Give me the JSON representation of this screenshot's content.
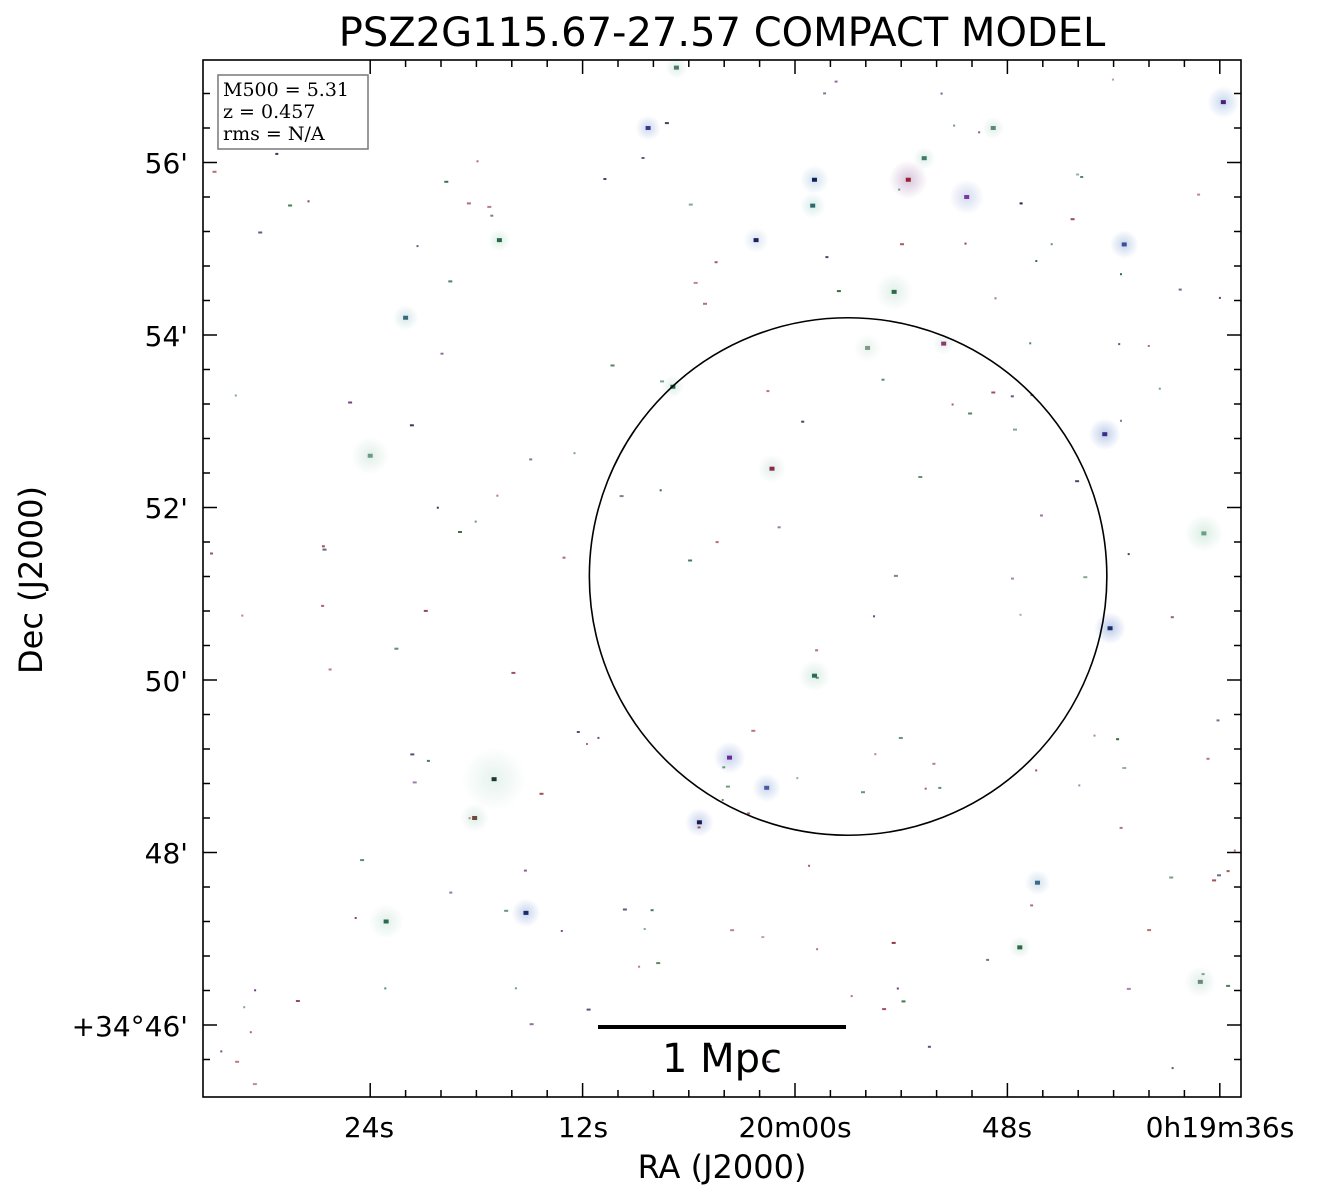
{
  "chart_data": {
    "type": "scatter",
    "title": "PSZ2G115.67-27.57 COMPACT MODEL",
    "xlabel": "RA (J2000)",
    "ylabel": "Dec (J2000)",
    "x_ticks": [
      "24s",
      "12s",
      "20m00s",
      "48s",
      "0h19m36s"
    ],
    "y_ticks": [
      "56'",
      "54'",
      "52'",
      "50'",
      "48'",
      "+34°46'"
    ],
    "info_box": {
      "lines": [
        "M500 = 5.31",
        "z = 0.457",
        "rms = N/A"
      ]
    },
    "scale_bar": {
      "label": "1 Mpc"
    },
    "region": {
      "shape": "circle",
      "ra_s": 63.0,
      "dec_arcmin": 51.2,
      "radius_arcmin": 3.0
    },
    "sources": [
      {
        "ra_s": 84.2,
        "dec_arcmin": 56.7,
        "size": 10,
        "color": "#4a1f7a",
        "halo": "#c8d8ee"
      },
      {
        "ra_s": 78.6,
        "dec_arcmin": 55.05,
        "size": 9,
        "color": "#3c4f9a",
        "halo": "#c8d6ec"
      },
      {
        "ra_s": 77.5,
        "dec_arcmin": 52.85,
        "size": 10,
        "color": "#3a2e86",
        "halo": "#bfcdea"
      },
      {
        "ra_s": 77.8,
        "dec_arcmin": 50.6,
        "size": 10,
        "color": "#1b2e6e",
        "halo": "#bccbe8"
      },
      {
        "ra_s": 83.1,
        "dec_arcmin": 51.7,
        "size": 12,
        "color": "#6aa080",
        "halo": "#dbeee4"
      },
      {
        "ra_s": 69.7,
        "dec_arcmin": 55.6,
        "size": 11,
        "color": "#7a3aa0",
        "halo": "#d4dcef"
      },
      {
        "ra_s": 71.2,
        "dec_arcmin": 56.4,
        "size": 7,
        "color": "#5a8a7a",
        "halo": "#e0eee8"
      },
      {
        "ra_s": 68.4,
        "dec_arcmin": 53.9,
        "size": 7,
        "color": "#8a3a6a",
        "halo": "#e6eeea"
      },
      {
        "ra_s": 66.4,
        "dec_arcmin": 55.8,
        "size": 12,
        "color": "#9a2030",
        "halo": "#d8c6dc"
      },
      {
        "ra_s": 67.3,
        "dec_arcmin": 56.05,
        "size": 7,
        "color": "#3f7a6a",
        "halo": "#deeee8"
      },
      {
        "ra_s": 65.6,
        "dec_arcmin": 54.5,
        "size": 12,
        "color": "#2a6a4a",
        "halo": "#e2f0ea"
      },
      {
        "ra_s": 61.1,
        "dec_arcmin": 55.8,
        "size": 9,
        "color": "#10205a",
        "halo": "#d2e2ee"
      },
      {
        "ra_s": 61.0,
        "dec_arcmin": 55.5,
        "size": 8,
        "color": "#2a6a6a",
        "halo": "#d8ecec"
      },
      {
        "ra_s": 57.8,
        "dec_arcmin": 55.1,
        "size": 8,
        "color": "#1a2060",
        "halo": "#dde6f0"
      },
      {
        "ra_s": 51.7,
        "dec_arcmin": 56.4,
        "size": 8,
        "color": "#3b3a8a",
        "halo": "#cfd8ee"
      },
      {
        "ra_s": 53.1,
        "dec_arcmin": 53.4,
        "size": 7,
        "color": "#1e6a4a",
        "halo": "#ddeee6"
      },
      {
        "ra_s": 58.7,
        "dec_arcmin": 52.45,
        "size": 9,
        "color": "#8a2a4a",
        "halo": "#e2eee8"
      },
      {
        "ra_s": 61.1,
        "dec_arcmin": 50.05,
        "size": 10,
        "color": "#2a6a5a",
        "halo": "#ddeee6"
      },
      {
        "ra_s": 56.3,
        "dec_arcmin": 49.1,
        "size": 10,
        "color": "#6a2a9a",
        "halo": "#c8d2ec"
      },
      {
        "ra_s": 58.4,
        "dec_arcmin": 48.75,
        "size": 9,
        "color": "#4a5aa0",
        "halo": "#ccd8ee"
      },
      {
        "ra_s": 54.6,
        "dec_arcmin": 48.35,
        "size": 9,
        "color": "#1a1a50",
        "halo": "#c8d4ec"
      },
      {
        "ra_s": 73.7,
        "dec_arcmin": 47.65,
        "size": 8,
        "color": "#3a6a8a",
        "halo": "#d4e2ec"
      },
      {
        "ra_s": 72.7,
        "dec_arcmin": 46.9,
        "size": 7,
        "color": "#2a6a4a",
        "halo": "#e0eee8"
      },
      {
        "ra_s": 82.9,
        "dec_arcmin": 46.5,
        "size": 10,
        "color": "#6a8a7a",
        "halo": "#e2efe9"
      },
      {
        "ra_s": 44.8,
        "dec_arcmin": 47.3,
        "size": 9,
        "color": "#1a2a6a",
        "halo": "#c8d4ec"
      },
      {
        "ra_s": 43.0,
        "dec_arcmin": 48.85,
        "size": 20,
        "color": "#1a3a2a",
        "halo": "#e6f2ee"
      },
      {
        "ra_s": 41.9,
        "dec_arcmin": 48.4,
        "size": 9,
        "color": "#6a4a3a",
        "halo": "#e0eee8"
      },
      {
        "ra_s": 43.3,
        "dec_arcmin": 55.1,
        "size": 7,
        "color": "#2a6a4a",
        "halo": "#deefe7"
      },
      {
        "ra_s": 38.0,
        "dec_arcmin": 54.2,
        "size": 8,
        "color": "#3a6a7a",
        "halo": "#d8e8ec"
      },
      {
        "ra_s": 36.0,
        "dec_arcmin": 52.6,
        "size": 12,
        "color": "#6a9a8a",
        "halo": "#e2efe9"
      },
      {
        "ra_s": 36.9,
        "dec_arcmin": 47.2,
        "size": 11,
        "color": "#2a6a4a",
        "halo": "#e2f0ea"
      },
      {
        "ra_s": 53.3,
        "dec_arcmin": 57.1,
        "size": 7,
        "color": "#4a7a6a",
        "halo": "#e0eee8"
      },
      {
        "ra_s": 64.1,
        "dec_arcmin": 53.85,
        "size": 9,
        "color": "#7a9a8a",
        "halo": "#eaf3ee"
      }
    ]
  }
}
